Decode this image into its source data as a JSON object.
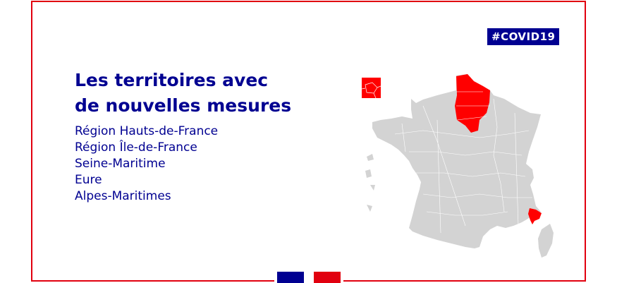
{
  "hashtag": "#COVID19",
  "title": {
    "line1": "Les territoires avec",
    "line2": "de nouvelles mesures"
  },
  "territories": [
    "Région Hauts-de-France",
    "Région Île-de-France",
    "Seine-Maritime",
    "Eure",
    "Alpes-Maritimes"
  ],
  "colors": {
    "brand_blue": "#000091",
    "highlight_red": "#ff0000",
    "frame_red": "#e1000f",
    "map_gray": "#d3d3d3"
  },
  "map": {
    "highlighted_regions": [
      "Hauts-de-France",
      "Île-de-France",
      "Seine-Maritime",
      "Eure",
      "Alpes-Maritimes"
    ],
    "inset": "Paris petite couronne"
  }
}
